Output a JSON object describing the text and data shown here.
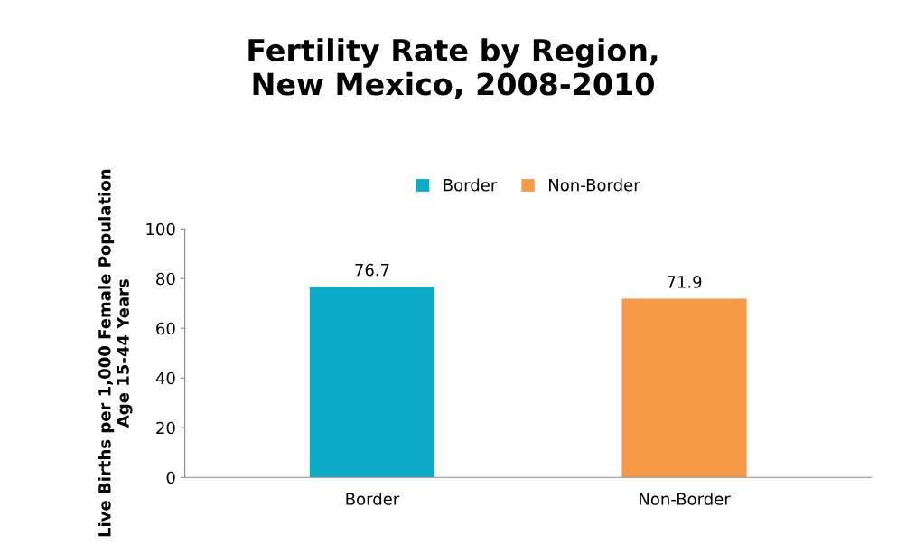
{
  "chart_data": {
    "type": "bar",
    "title": "Fertility Rate by Region,\nNew Mexico, 2008-2010",
    "ylabel": "Live Births per 1,000 Female Population\nAge 15-44 Years",
    "categories": [
      "Border",
      "Non-Border"
    ],
    "series": [
      {
        "name": "Border",
        "color": "#0cabc9",
        "values": [
          76.7,
          null
        ]
      },
      {
        "name": "Non-Border",
        "color": "#f79a47",
        "values": [
          null,
          71.9
        ]
      }
    ],
    "ylim": [
      0,
      100
    ],
    "yticks": [
      0,
      20,
      40,
      60,
      80,
      100
    ],
    "data_labels": true,
    "legend": "top",
    "grid": false
  }
}
